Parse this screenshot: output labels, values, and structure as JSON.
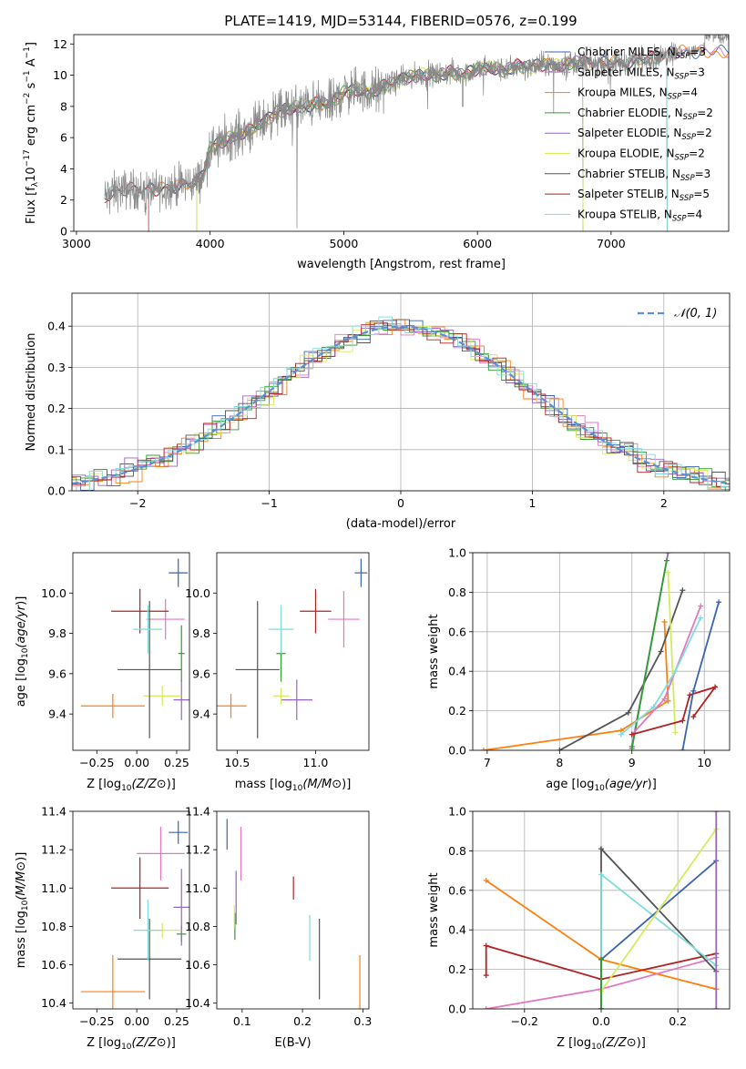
{
  "figure": {
    "title": "PLATE=1419, MJD=53144, FIBERID=0576, z=0.199"
  },
  "colors": {
    "chabrier_miles": "#3a63b0",
    "salpeter_miles": "#e377c2",
    "kroupa_miles": "#ff7f0e",
    "chabrier_elodie": "#2ca02c",
    "salpeter_elodie": "#9467bd",
    "kroupa_elodie": "#d4ec5a",
    "chabrier_stelib": "#555555",
    "salpeter_stelib": "#b22222",
    "kroupa_stelib": "#7fdddd",
    "data_spectrum": "#888888",
    "normal_curve": "#5b8fd9",
    "mw_miles_chabrier": "#6a8fdc",
    "mw_elodie_salpeter": "#9b1fc4"
  },
  "chart_data": [
    {
      "id": "spectrum",
      "type": "line",
      "xlabel": "wavelength [Angstrom, rest frame]",
      "xlim": [
        2980,
        7880
      ],
      "ylim": [
        0,
        12.6
      ],
      "xticks": [
        "3000",
        "4000",
        "5000",
        "6000",
        "7000"
      ],
      "yticks": [
        "0",
        "2",
        "4",
        "6",
        "8",
        "10",
        "12"
      ],
      "grid": false,
      "legend_position": "right",
      "legend": [
        {
          "key": "chabrier_miles",
          "label": "Chabrier MILES, N",
          "sub": "SSP",
          "tail": "=3"
        },
        {
          "key": "salpeter_miles",
          "label": "Salpeter MILES, N",
          "sub": "SSP",
          "tail": "=3"
        },
        {
          "key": "kroupa_miles",
          "label": "Kroupa MILES, N",
          "sub": "SSP",
          "tail": "=4"
        },
        {
          "key": "chabrier_elodie",
          "label": "Chabrier ELODIE, N",
          "sub": "SSP",
          "tail": "=2"
        },
        {
          "key": "salpeter_elodie",
          "label": "Salpeter ELODIE, N",
          "sub": "SSP",
          "tail": "=2"
        },
        {
          "key": "kroupa_elodie",
          "label": "Kroupa ELODIE, N",
          "sub": "SSP",
          "tail": "=2"
        },
        {
          "key": "chabrier_stelib",
          "label": "Chabrier STELIB, N",
          "sub": "SSP",
          "tail": "=3"
        },
        {
          "key": "salpeter_stelib",
          "label": "Salpeter STELIB, N",
          "sub": "SSP",
          "tail": "=5"
        },
        {
          "key": "kroupa_stelib",
          "label": "Kroupa STELIB, N",
          "sub": "SSP",
          "tail": "=4"
        }
      ],
      "continuum": {
        "x": [
          3210,
          3300,
          3400,
          3500,
          3600,
          3700,
          3800,
          3900,
          3950,
          4000,
          4100,
          4200,
          4300,
          4400,
          4500,
          4600,
          4700,
          4800,
          4900,
          5000,
          5100,
          5200,
          5300,
          5400,
          5500,
          5600,
          5700,
          5800,
          5900,
          6000,
          6100,
          6200,
          6300,
          6400,
          6500,
          6600,
          6700,
          6800,
          6900,
          7000,
          7100,
          7200,
          7300,
          7400,
          7450
        ],
        "y": [
          2.2,
          2.6,
          2.7,
          2.6,
          2.7,
          2.8,
          3.0,
          3.2,
          3.6,
          5.3,
          5.8,
          6.2,
          6.5,
          7.0,
          7.6,
          7.9,
          8.0,
          8.2,
          8.1,
          8.9,
          9.1,
          8.9,
          9.3,
          9.6,
          9.9,
          10.1,
          10.0,
          10.2,
          10.0,
          10.4,
          10.5,
          10.3,
          10.6,
          10.5,
          10.7,
          10.6,
          10.8,
          10.8,
          10.7,
          10.9,
          10.8,
          11.0,
          11.1,
          11.2,
          11.5
        ]
      }
    },
    {
      "id": "residuals",
      "type": "line",
      "xlabel": "(data-model)/error",
      "ylabel": "Normed distribution",
      "xlim": [
        -2.5,
        2.5
      ],
      "ylim": [
        0,
        0.48
      ],
      "xticks": [
        "−2",
        "−1",
        "0",
        "1",
        "2"
      ],
      "yticks": [
        "0.0",
        "0.1",
        "0.2",
        "0.3",
        "0.4"
      ],
      "grid": true,
      "legend_position": "top-right",
      "normal_label": "𝒩(0, 1)",
      "bin_width": 0.1
    },
    {
      "id": "age_vs_z",
      "type": "scatter",
      "xlabel": "Z [log",
      "ylabel": "age  [log",
      "xlim": [
        -0.4,
        0.33
      ],
      "ylim": [
        9.22,
        10.2
      ],
      "xticks": [
        "−0.25",
        "0.00",
        "0.25"
      ],
      "yticks": [
        "9.4",
        "9.6",
        "9.8",
        "10.0"
      ],
      "points": [
        {
          "key": "chabrier_miles",
          "x": 0.26,
          "y": 10.1,
          "xerr": 0.06,
          "yerr": 0.07
        },
        {
          "key": "salpeter_miles",
          "x": 0.18,
          "y": 9.87,
          "xerr": 0.12,
          "yerr": 0.1
        },
        {
          "key": "kroupa_miles",
          "x": -0.15,
          "y": 9.44,
          "xerr": 0.2,
          "yerr": 0.06
        },
        {
          "key": "chabrier_elodie",
          "x": 0.28,
          "y": 9.7,
          "xerr": 0.02,
          "yerr": 0.14
        },
        {
          "key": "salpeter_elodie",
          "x": 0.28,
          "y": 9.47,
          "xerr": 0.05,
          "yerr": 0.1
        },
        {
          "key": "kroupa_elodie",
          "x": 0.16,
          "y": 9.49,
          "xerr": 0.12,
          "yerr": 0.05
        },
        {
          "key": "chabrier_stelib",
          "x": 0.08,
          "y": 9.62,
          "xerr": 0.2,
          "yerr": 0.34
        },
        {
          "key": "salpeter_stelib",
          "x": 0.02,
          "y": 9.91,
          "xerr": 0.18,
          "yerr": 0.11
        },
        {
          "key": "kroupa_stelib",
          "x": 0.07,
          "y": 9.82,
          "xerr": 0.09,
          "yerr": 0.12
        }
      ]
    },
    {
      "id": "age_vs_mass",
      "type": "scatter",
      "xlabel": "mass [log",
      "xlim": [
        10.37,
        11.34
      ],
      "ylim": [
        9.22,
        10.2
      ],
      "xticks": [
        "10.5",
        "11.0"
      ],
      "yticks": [
        "9.4",
        "9.6",
        "9.8",
        "10.0"
      ],
      "points": [
        {
          "key": "chabrier_miles",
          "x": 11.29,
          "y": 10.1,
          "xerr": 0.04,
          "yerr": 0.07
        },
        {
          "key": "salpeter_miles",
          "x": 11.18,
          "y": 9.87,
          "xerr": 0.1,
          "yerr": 0.14
        },
        {
          "key": "kroupa_miles",
          "x": 10.46,
          "y": 9.44,
          "xerr": 0.1,
          "yerr": 0.06
        },
        {
          "key": "chabrier_elodie",
          "x": 10.78,
          "y": 9.7,
          "xerr": 0.03,
          "yerr": 0.14
        },
        {
          "key": "salpeter_elodie",
          "x": 10.88,
          "y": 9.47,
          "xerr": 0.1,
          "yerr": 0.1
        },
        {
          "key": "kroupa_elodie",
          "x": 10.78,
          "y": 9.49,
          "xerr": 0.05,
          "yerr": 0.04
        },
        {
          "key": "chabrier_stelib",
          "x": 10.63,
          "y": 9.62,
          "xerr": 0.14,
          "yerr": 0.34
        },
        {
          "key": "salpeter_stelib",
          "x": 11.0,
          "y": 9.91,
          "xerr": 0.1,
          "yerr": 0.11
        },
        {
          "key": "kroupa_stelib",
          "x": 10.78,
          "y": 9.82,
          "xerr": 0.08,
          "yerr": 0.12
        }
      ]
    },
    {
      "id": "mw_vs_age",
      "type": "line",
      "xlabel": "age  [log",
      "ylabel": "mass weight",
      "xlim": [
        6.8,
        10.35
      ],
      "ylim": [
        0,
        1.0
      ],
      "xticks": [
        "7",
        "8",
        "9",
        "10"
      ],
      "yticks": [
        "0.0",
        "0.2",
        "0.4",
        "0.6",
        "0.8",
        "1.0"
      ],
      "grid": true,
      "series": [
        {
          "key": "kroupa_miles",
          "x": [
            6.95,
            8.85,
            9.5,
            9.45
          ],
          "y": [
            0.0,
            0.1,
            0.25,
            0.65
          ]
        },
        {
          "key": "chabrier_stelib",
          "x": [
            8.0,
            8.95,
            9.4,
            9.7
          ],
          "y": [
            0.0,
            0.19,
            0.5,
            0.81
          ]
        },
        {
          "key": "salpeter_elodie",
          "x": [
            9.0,
            9.5
          ],
          "y": [
            0.02,
            1.0
          ]
        },
        {
          "key": "chabrier_elodie",
          "x": [
            9.0,
            9.48
          ],
          "y": [
            0.01,
            0.96
          ]
        },
        {
          "key": "kroupa_elodie",
          "x": [
            9.5,
            9.6
          ],
          "y": [
            0.9,
            0.09
          ]
        },
        {
          "key": "salpeter_miles",
          "x": [
            9.0,
            9.45,
            9.95
          ],
          "y": [
            0.08,
            0.26,
            0.73
          ]
        },
        {
          "key": "kroupa_stelib",
          "x": [
            8.85,
            9.3,
            9.6,
            9.95
          ],
          "y": [
            0.08,
            0.22,
            0.4,
            0.67
          ]
        },
        {
          "key": "salpeter_stelib",
          "x": [
            9.0,
            9.7,
            9.8,
            10.15,
            9.85
          ],
          "y": [
            0.08,
            0.15,
            0.28,
            0.32,
            0.17
          ]
        },
        {
          "key": "chabrier_miles",
          "x": [
            9.7,
            9.85,
            10.2
          ],
          "y": [
            0.0,
            0.3,
            0.75
          ]
        }
      ]
    },
    {
      "id": "mass_vs_z",
      "type": "scatter",
      "xlabel": "Z [log",
      "ylabel": "mass [log",
      "xlim": [
        -0.4,
        0.33
      ],
      "ylim": [
        10.37,
        11.4
      ],
      "xticks": [
        "−0.25",
        "0.00",
        "0.25"
      ],
      "yticks": [
        "10.4",
        "10.6",
        "10.8",
        "11.0",
        "11.2",
        "11.4"
      ],
      "points": [
        {
          "key": "chabrier_miles",
          "x": 0.26,
          "y": 11.29,
          "xerr": 0.06,
          "yerr": 0.06
        },
        {
          "key": "salpeter_miles",
          "x": 0.15,
          "y": 11.18,
          "xerr": 0.15,
          "yerr": 0.14
        },
        {
          "key": "kroupa_miles",
          "x": -0.15,
          "y": 10.46,
          "xerr": 0.2,
          "yerr": 0.19
        },
        {
          "key": "chabrier_elodie",
          "x": 0.28,
          "y": 10.76,
          "xerr": 0.03,
          "yerr": 0.04
        },
        {
          "key": "salpeter_elodie",
          "x": 0.28,
          "y": 10.9,
          "xerr": 0.05,
          "yerr": 0.2
        },
        {
          "key": "kroupa_elodie",
          "x": 0.16,
          "y": 10.78,
          "xerr": 0.12,
          "yerr": 0.04
        },
        {
          "key": "chabrier_stelib",
          "x": 0.08,
          "y": 10.63,
          "xerr": 0.2,
          "yerr": 0.21
        },
        {
          "key": "salpeter_stelib",
          "x": 0.02,
          "y": 11.0,
          "xerr": 0.18,
          "yerr": 0.16
        },
        {
          "key": "kroupa_stelib",
          "x": 0.07,
          "y": 10.78,
          "xerr": 0.09,
          "yerr": 0.16
        }
      ]
    },
    {
      "id": "mass_vs_ebv",
      "type": "scatter",
      "xlabel": "E(B-V)",
      "xlim": [
        0.058,
        0.31
      ],
      "ylim": [
        10.37,
        11.4
      ],
      "xticks": [
        "0.1",
        "0.2",
        "0.3"
      ],
      "yticks": [
        "10.4",
        "10.6",
        "10.8",
        "11.0",
        "11.2",
        "11.4"
      ],
      "points": [
        {
          "key": "chabrier_miles",
          "x": 0.075,
          "y": 11.28,
          "yerr": 0.08
        },
        {
          "key": "salpeter_miles",
          "x": 0.098,
          "y": 11.18,
          "yerr": 0.14
        },
        {
          "key": "kroupa_miles",
          "x": 0.295,
          "y": 10.46,
          "yerr": 0.19
        },
        {
          "key": "chabrier_elodie",
          "x": 0.088,
          "y": 10.8,
          "yerr": 0.07
        },
        {
          "key": "salpeter_elodie",
          "x": 0.09,
          "y": 10.95,
          "yerr": 0.14
        },
        {
          "key": "kroupa_elodie",
          "x": 0.087,
          "y": 10.85,
          "yerr": 0.06
        },
        {
          "key": "chabrier_stelib",
          "x": 0.228,
          "y": 10.63,
          "yerr": 0.21
        },
        {
          "key": "salpeter_stelib",
          "x": 0.185,
          "y": 11.0,
          "yerr": 0.06
        },
        {
          "key": "kroupa_stelib",
          "x": 0.212,
          "y": 10.74,
          "yerr": 0.12
        }
      ]
    },
    {
      "id": "mw_vs_z",
      "type": "line",
      "xlabel": "Z [log",
      "ylabel": "mass weight",
      "xlim": [
        -0.335,
        0.335
      ],
      "ylim": [
        0,
        1.0
      ],
      "xticks": [
        "−0.2",
        "0.0",
        "0.2"
      ],
      "yticks": [
        "0.0",
        "0.2",
        "0.4",
        "0.6",
        "0.8",
        "1.0"
      ],
      "grid": true,
      "series": [
        {
          "key": "kroupa_miles",
          "x": [
            -0.3,
            0.0,
            0.3
          ],
          "y": [
            0.65,
            0.25,
            0.1
          ]
        },
        {
          "key": "salpeter_stelib",
          "x": [
            -0.3,
            -0.3,
            0.0,
            0.3
          ],
          "y": [
            0.17,
            0.32,
            0.15,
            0.28
          ]
        },
        {
          "key": "salpeter_miles",
          "x": [
            -0.3,
            0.0,
            0.3
          ],
          "y": [
            0.0,
            0.1,
            0.26
          ]
        },
        {
          "key": "chabrier_stelib",
          "x": [
            0.0,
            0.0,
            0.3
          ],
          "y": [
            0.0,
            0.81,
            0.19
          ]
        },
        {
          "key": "kroupa_stelib",
          "x": [
            0.0,
            0.0,
            0.3
          ],
          "y": [
            0.0,
            0.68,
            0.22
          ]
        },
        {
          "key": "chabrier_miles",
          "x": [
            0.0,
            0.0,
            0.3
          ],
          "y": [
            0.0,
            0.25,
            0.75
          ]
        },
        {
          "key": "kroupa_elodie",
          "x": [
            0.0,
            0.0,
            0.3
          ],
          "y": [
            0.09,
            0.09,
            0.91
          ]
        },
        {
          "key": "salpeter_elodie",
          "x": [
            0.3,
            0.3
          ],
          "y": [
            0.0,
            1.0
          ]
        },
        {
          "key": "chabrier_elodie",
          "x": [
            0.0,
            0.0
          ],
          "y": [
            0.0,
            0.25
          ]
        }
      ]
    }
  ]
}
